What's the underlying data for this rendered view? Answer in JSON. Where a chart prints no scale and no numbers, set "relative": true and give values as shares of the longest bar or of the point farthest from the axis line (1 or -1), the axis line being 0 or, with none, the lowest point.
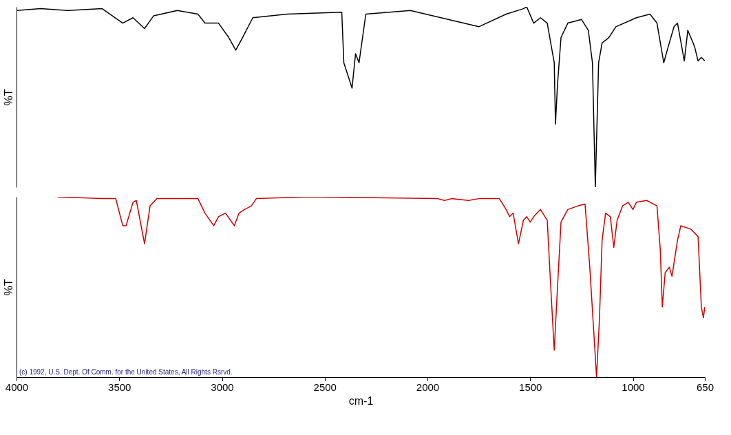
{
  "chart_data": [
    {
      "type": "line",
      "relative": true,
      "ylabel": "%T",
      "xlim": [
        4000,
        650
      ],
      "xticks": [
        4000,
        3500,
        3000,
        2500,
        2000,
        1500,
        1000,
        650
      ],
      "tick_labels": false,
      "grid": false,
      "series": [
        {
          "color": "#000000",
          "x": [
            4000,
            3883,
            3750,
            3583,
            3483,
            3433,
            3377,
            3333,
            3217,
            3117,
            3083,
            3017,
            2967,
            2933,
            2900,
            2850,
            2683,
            2417,
            2407,
            2367,
            2350,
            2333,
            2300,
            2083,
            1750,
            1617,
            1533,
            1517,
            1483,
            1450,
            1417,
            1383,
            1377,
            1367,
            1350,
            1317,
            1250,
            1217,
            1197,
            1183,
            1167,
            1150,
            1117,
            1083,
            983,
            917,
            883,
            850,
            833,
            800,
            783,
            750,
            733,
            700,
            683,
            667,
            650
          ],
          "values": [
            0.98,
            0.99,
            0.98,
            0.99,
            0.91,
            0.94,
            0.88,
            0.95,
            0.98,
            0.96,
            0.91,
            0.91,
            0.83,
            0.76,
            0.83,
            0.94,
            0.96,
            0.97,
            0.69,
            0.55,
            0.74,
            0.69,
            0.96,
            0.98,
            0.89,
            0.96,
            0.99,
            1.0,
            0.91,
            0.94,
            0.91,
            0.69,
            0.35,
            0.57,
            0.83,
            0.91,
            0.93,
            0.87,
            0.69,
            0.0,
            0.69,
            0.8,
            0.83,
            0.89,
            0.94,
            0.96,
            0.91,
            0.69,
            0.76,
            0.89,
            0.91,
            0.7,
            0.87,
            0.78,
            0.7,
            0.72,
            0.7
          ]
        }
      ]
    },
    {
      "type": "line",
      "relative": true,
      "ylabel": "%T",
      "xlabel": "cm-1",
      "xlim": [
        4000,
        650
      ],
      "xticks": [
        4000,
        3500,
        3000,
        2500,
        2000,
        1500,
        1000,
        650
      ],
      "tick_labels": "x",
      "grid": false,
      "annotations": [
        "(c) 1992, U.S. Dept. Of Comm. for the United States, All Rights Rsrvd."
      ],
      "series": [
        {
          "color": "#cc0000",
          "x": [
            3800,
            3583,
            3517,
            3483,
            3467,
            3433,
            3417,
            3377,
            3350,
            3317,
            3117,
            3083,
            3040,
            3017,
            2983,
            2940,
            2917,
            2890,
            2857,
            2833,
            2583,
            1950,
            1917,
            1883,
            1800,
            1750,
            1650,
            1617,
            1600,
            1583,
            1557,
            1533,
            1517,
            1500,
            1483,
            1450,
            1417,
            1400,
            1383,
            1367,
            1350,
            1317,
            1267,
            1233,
            1210,
            1190,
            1177,
            1163,
            1150,
            1133,
            1110,
            1093,
            1077,
            1050,
            1023,
            1000,
            983,
            933,
            883,
            867,
            857,
            843,
            823,
            810,
            783,
            767,
            717,
            683,
            667,
            657,
            650
          ],
          "values": [
            1.0,
            0.99,
            0.99,
            0.84,
            0.84,
            0.97,
            0.98,
            0.74,
            0.95,
            0.99,
            0.99,
            0.91,
            0.84,
            0.89,
            0.91,
            0.84,
            0.91,
            0.93,
            0.95,
            0.99,
            1.0,
            0.99,
            0.98,
            0.99,
            0.98,
            0.99,
            0.99,
            0.93,
            0.89,
            0.91,
            0.74,
            0.87,
            0.89,
            0.86,
            0.89,
            0.93,
            0.87,
            0.5,
            0.15,
            0.5,
            0.86,
            0.93,
            0.95,
            0.96,
            0.61,
            0.24,
            0.0,
            0.32,
            0.76,
            0.91,
            0.89,
            0.72,
            0.87,
            0.95,
            0.97,
            0.93,
            0.97,
            0.98,
            0.95,
            0.71,
            0.39,
            0.58,
            0.61,
            0.56,
            0.76,
            0.84,
            0.82,
            0.78,
            0.39,
            0.33,
            0.39
          ]
        }
      ]
    }
  ]
}
